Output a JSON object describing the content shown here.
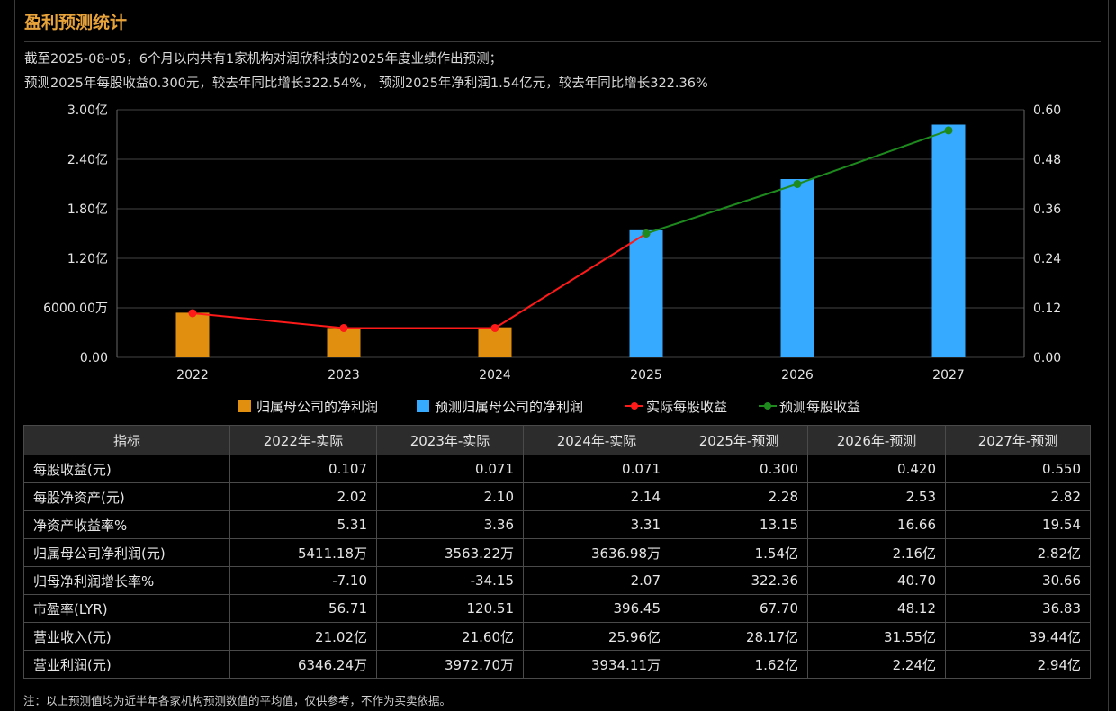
{
  "title": "盈利预测统计",
  "summary": {
    "line1": "截至2025-08-05，6个月以内共有1家机构对润欣科技的2025年度业绩作出预测；",
    "line2": "预测2025年每股收益0.300元，较去年同比增长322.54%， 预测2025年净利润1.54亿元，较去年同比增长322.36%"
  },
  "chart_data": {
    "type": "bar",
    "categories": [
      "2022",
      "2023",
      "2024",
      "2025",
      "2026",
      "2027"
    ],
    "left_axis": {
      "ticks": [
        "0.00",
        "6000.00万",
        "1.20亿",
        "1.80亿",
        "2.40亿",
        "3.00亿"
      ],
      "unit": "元",
      "ylim": [
        0,
        300000000
      ]
    },
    "right_axis": {
      "ticks": [
        "0.00",
        "0.12",
        "0.24",
        "0.36",
        "0.48",
        "0.60"
      ],
      "ylim": [
        0,
        0.6
      ]
    },
    "series": [
      {
        "name": "归属母公司的净利润",
        "kind": "bar",
        "axis": "left",
        "color": "#e0900e",
        "values": [
          54111800,
          35632200,
          36369800,
          null,
          null,
          null
        ]
      },
      {
        "name": "预测归属母公司的净利润",
        "kind": "bar",
        "axis": "left",
        "color": "#35aaff",
        "values": [
          null,
          null,
          null,
          154000000,
          216000000,
          282000000
        ]
      },
      {
        "name": "实际每股收益",
        "kind": "line",
        "axis": "right",
        "color": "#ff1a1a",
        "values": [
          0.107,
          0.071,
          0.071,
          0.3,
          null,
          null
        ]
      },
      {
        "name": "预测每股收益",
        "kind": "line",
        "axis": "right",
        "color": "#1e8a1e",
        "values": [
          null,
          null,
          null,
          0.3,
          0.42,
          0.55
        ]
      }
    ],
    "grid": true,
    "legend_position": "bottom"
  },
  "table": {
    "headers": [
      "指标",
      "2022年-实际",
      "2023年-实际",
      "2024年-实际",
      "2025年-预测",
      "2026年-预测",
      "2027年-预测"
    ],
    "rows": [
      [
        "每股收益(元)",
        "0.107",
        "0.071",
        "0.071",
        "0.300",
        "0.420",
        "0.550"
      ],
      [
        "每股净资产(元)",
        "2.02",
        "2.10",
        "2.14",
        "2.28",
        "2.53",
        "2.82"
      ],
      [
        "净资产收益率%",
        "5.31",
        "3.36",
        "3.31",
        "13.15",
        "16.66",
        "19.54"
      ],
      [
        "归属母公司净利润(元)",
        "5411.18万",
        "3563.22万",
        "3636.98万",
        "1.54亿",
        "2.16亿",
        "2.82亿"
      ],
      [
        "归母净利润增长率%",
        "-7.10",
        "-34.15",
        "2.07",
        "322.36",
        "40.70",
        "30.66"
      ],
      [
        "市盈率(LYR)",
        "56.71",
        "120.51",
        "396.45",
        "67.70",
        "48.12",
        "36.83"
      ],
      [
        "营业收入(元)",
        "21.02亿",
        "21.60亿",
        "25.96亿",
        "28.17亿",
        "31.55亿",
        "39.44亿"
      ],
      [
        "营业利润(元)",
        "6346.24万",
        "3972.70万",
        "3934.11万",
        "1.62亿",
        "2.24亿",
        "2.94亿"
      ]
    ]
  },
  "footnote": "注：以上预测值均为近半年各家机构预测数值的平均值，仅供参考，不作为买卖依据。"
}
